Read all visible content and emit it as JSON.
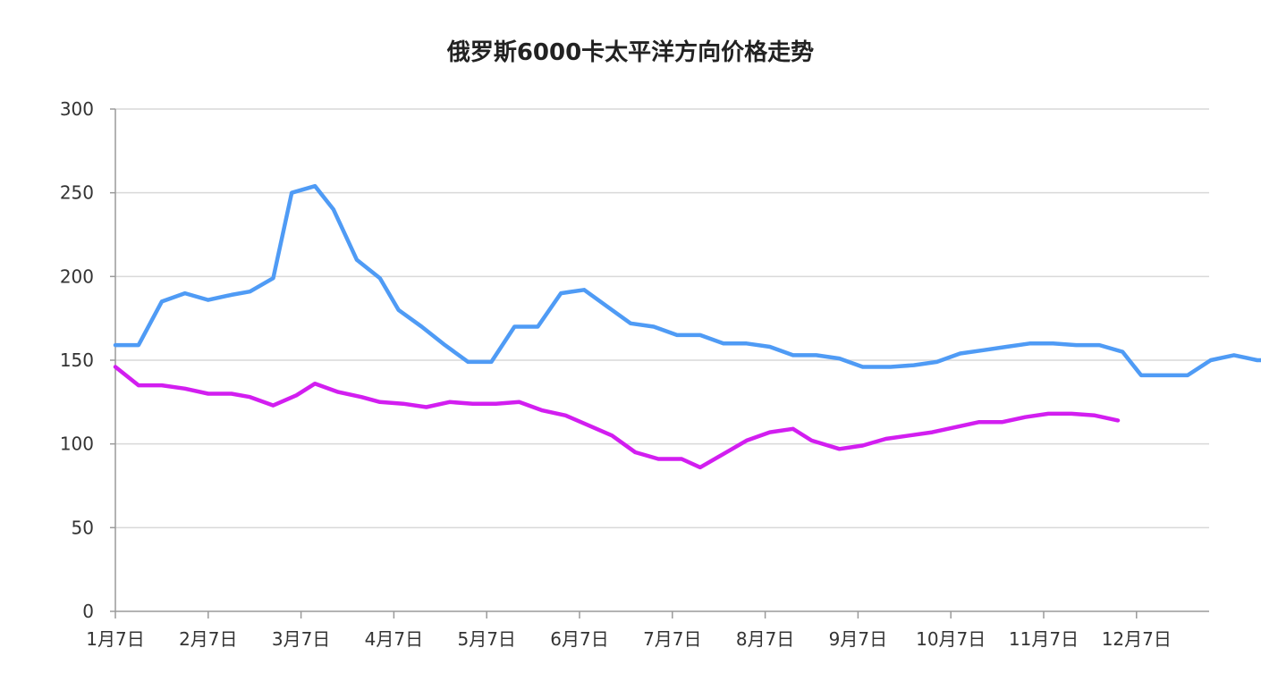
{
  "chart_data": {
    "type": "line",
    "title": "俄罗斯6000卡太平洋方向价格走势",
    "xlabel": "",
    "ylabel": "",
    "ylim": [
      0,
      300
    ],
    "yticks": [
      0,
      50,
      100,
      150,
      200,
      250,
      300
    ],
    "xlim": [
      0,
      12
    ],
    "xtick_labels": [
      "1月7日",
      "2月7日",
      "3月7日",
      "4月7日",
      "5月7日",
      "6月7日",
      "7月7日",
      "8月7日",
      "9月7日",
      "10月7日",
      "11月7日",
      "12月7日"
    ],
    "grid": true,
    "legend": "none",
    "colors": {
      "series1": "#4f9bf5",
      "series2": "#d21ef0"
    },
    "series": [
      {
        "values": [
          [
            0.0,
            159
          ],
          [
            0.25,
            159
          ],
          [
            0.5,
            185
          ],
          [
            0.75,
            190
          ],
          [
            1.0,
            186
          ],
          [
            1.25,
            189
          ],
          [
            1.45,
            191
          ],
          [
            1.7,
            199
          ],
          [
            1.9,
            250
          ],
          [
            2.15,
            254
          ],
          [
            2.35,
            240
          ],
          [
            2.6,
            210
          ],
          [
            2.85,
            199
          ],
          [
            3.05,
            180
          ],
          [
            3.3,
            170
          ],
          [
            3.55,
            159
          ],
          [
            3.8,
            149
          ],
          [
            4.05,
            149
          ],
          [
            4.3,
            170
          ],
          [
            4.55,
            170
          ],
          [
            4.8,
            190
          ],
          [
            5.05,
            192
          ],
          [
            5.3,
            182
          ],
          [
            5.55,
            172
          ],
          [
            5.8,
            170
          ],
          [
            6.05,
            165
          ],
          [
            6.3,
            165
          ],
          [
            6.55,
            160
          ],
          [
            6.8,
            160
          ],
          [
            7.05,
            158
          ],
          [
            7.3,
            153
          ],
          [
            7.55,
            153
          ],
          [
            7.8,
            151
          ],
          [
            8.05,
            146
          ],
          [
            8.35,
            146
          ],
          [
            8.6,
            147
          ],
          [
            8.85,
            149
          ],
          [
            9.1,
            154
          ],
          [
            9.35,
            156
          ],
          [
            9.6,
            158
          ],
          [
            9.85,
            160
          ],
          [
            10.1,
            160
          ],
          [
            10.35,
            159
          ],
          [
            10.6,
            159
          ],
          [
            10.85,
            155
          ],
          [
            11.05,
            141
          ],
          [
            11.3,
            141
          ],
          [
            11.55,
            141
          ],
          [
            11.8,
            150
          ],
          [
            12.05,
            153
          ],
          [
            12.3,
            150
          ],
          [
            12.55,
            150
          ]
        ]
      },
      {
        "values": [
          [
            0.0,
            146
          ],
          [
            0.25,
            135
          ],
          [
            0.5,
            135
          ],
          [
            0.75,
            133
          ],
          [
            1.0,
            130
          ],
          [
            1.25,
            130
          ],
          [
            1.45,
            128
          ],
          [
            1.7,
            123
          ],
          [
            1.95,
            129
          ],
          [
            2.15,
            136
          ],
          [
            2.4,
            131
          ],
          [
            2.65,
            128
          ],
          [
            2.85,
            125
          ],
          [
            3.1,
            124
          ],
          [
            3.35,
            122
          ],
          [
            3.6,
            125
          ],
          [
            3.85,
            124
          ],
          [
            4.1,
            124
          ],
          [
            4.35,
            125
          ],
          [
            4.6,
            120
          ],
          [
            4.85,
            117
          ],
          [
            5.1,
            111
          ],
          [
            5.35,
            105
          ],
          [
            5.6,
            95
          ],
          [
            5.85,
            91
          ],
          [
            6.1,
            91
          ],
          [
            6.3,
            86
          ],
          [
            6.55,
            94
          ],
          [
            6.8,
            102
          ],
          [
            7.05,
            107
          ],
          [
            7.3,
            109
          ],
          [
            7.5,
            102
          ],
          [
            7.8,
            97
          ],
          [
            8.05,
            99
          ],
          [
            8.3,
            103
          ],
          [
            8.55,
            105
          ],
          [
            8.8,
            107
          ],
          [
            9.05,
            110
          ],
          [
            9.3,
            113
          ],
          [
            9.55,
            113
          ],
          [
            9.8,
            116
          ],
          [
            10.05,
            118
          ],
          [
            10.3,
            118
          ],
          [
            10.55,
            117
          ],
          [
            10.8,
            114
          ]
        ]
      }
    ]
  }
}
